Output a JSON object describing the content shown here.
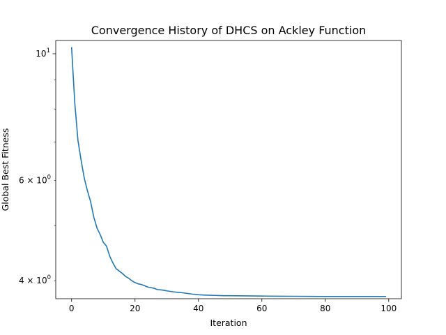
{
  "chart_data": {
    "type": "line",
    "title": "Convergence History of DHCS on Ackley Function",
    "xlabel": "Iteration",
    "ylabel": "Global Best Fitness",
    "yscale": "log",
    "xlim": [
      -5,
      104
    ],
    "ylim": [
      3.72,
      10.55
    ],
    "grid": false,
    "x_ticks": [
      0,
      20,
      40,
      60,
      80,
      100
    ],
    "x_tick_labels": [
      "0",
      "20",
      "40",
      "60",
      "80",
      "100"
    ],
    "y_major_ticks": [
      {
        "value": 10,
        "base": "10",
        "exponent": "1"
      }
    ],
    "y_minor_ticks": [
      4,
      5,
      6,
      7,
      8,
      9
    ],
    "y_minor_labels": [
      {
        "value": 6,
        "mant": "6",
        "base": "10",
        "exponent": "0"
      },
      {
        "value": 4,
        "mant": "4",
        "base": "10",
        "exponent": "0"
      }
    ],
    "series": [
      {
        "color": "#1f77b4",
        "x": [
          0,
          1,
          2,
          3,
          4,
          5,
          6,
          7,
          8,
          9,
          10,
          11,
          12,
          13,
          14,
          15,
          16,
          17,
          18,
          19,
          20,
          21,
          22,
          23,
          24,
          25,
          26,
          27,
          28,
          29,
          30,
          32,
          35,
          38,
          40,
          42,
          45,
          48,
          50,
          55,
          60,
          65,
          70,
          75,
          80,
          85,
          90,
          95,
          99
        ],
        "y": [
          10.25,
          8.2,
          7.05,
          6.5,
          6.05,
          5.75,
          5.5,
          5.17,
          4.95,
          4.82,
          4.67,
          4.6,
          4.42,
          4.3,
          4.2,
          4.16,
          4.12,
          4.07,
          4.04,
          4.0,
          3.97,
          3.95,
          3.94,
          3.92,
          3.9,
          3.89,
          3.88,
          3.86,
          3.855,
          3.85,
          3.84,
          3.825,
          3.81,
          3.79,
          3.78,
          3.775,
          3.77,
          3.765,
          3.765,
          3.763,
          3.76,
          3.758,
          3.757,
          3.755,
          3.754,
          3.754,
          3.754,
          3.754,
          3.754
        ]
      }
    ]
  }
}
